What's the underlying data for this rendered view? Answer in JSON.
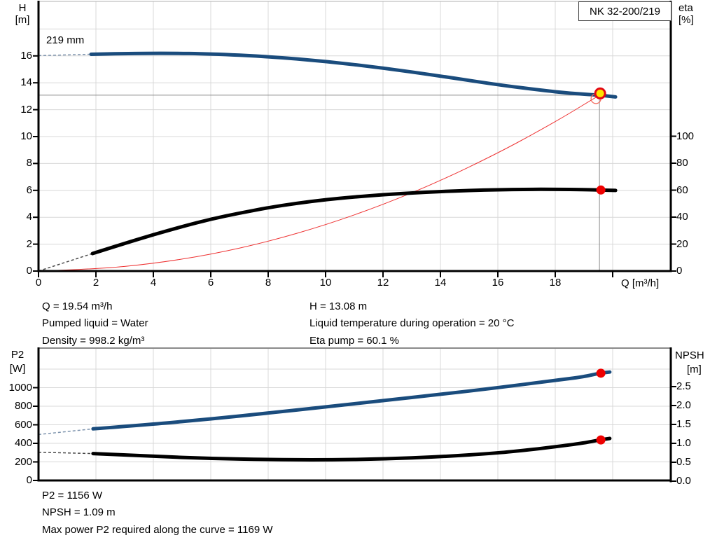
{
  "colors": {
    "curve_blue": "#1a4c7d",
    "curve_black": "#000000",
    "affinity_red": "#ee3333",
    "dot_red": "#ee0000",
    "duty_fill": "#ffe400",
    "duty_ring": "#e30613",
    "grid": "#d8d8d8",
    "crosshair": "#8c8c8c",
    "axis": "#000000"
  },
  "chart_data": [
    {
      "type": "line",
      "title": "NK 32-200/219",
      "impeller_label": "219 mm",
      "xlabel": "Q [m³/h]",
      "ylabel_left_1": "H",
      "ylabel_left_2": "[m]",
      "ylabel_right_1": "eta",
      "ylabel_right_2": "[%]",
      "xlim": [
        0,
        22
      ],
      "ylim_left": [
        0,
        20
      ],
      "ylim_right": [
        0,
        200
      ],
      "grid": true,
      "x_ticks": [
        "0",
        "2",
        "4",
        "6",
        "8",
        "10",
        "12",
        "14",
        "16",
        "18"
      ],
      "x_ticks_unlabeled": [
        "20"
      ],
      "x_grid": [
        2,
        4,
        6,
        8,
        10,
        12,
        14,
        16,
        18,
        20
      ],
      "y_ticks_left": [
        "0",
        "2",
        "4",
        "6",
        "8",
        "10",
        "12",
        "14",
        "16"
      ],
      "y_grid_left": [
        2,
        4,
        6,
        8,
        10,
        12,
        14,
        16,
        18
      ],
      "y_ticks_right": [
        "0",
        "20",
        "40",
        "60",
        "80",
        "100"
      ],
      "series": [
        {
          "id": "affinity-parabola",
          "axis": "left",
          "color": "#ee3333",
          "width": 1,
          "points": [
            [
              0,
              0
            ],
            [
              2,
              0.14
            ],
            [
              4,
              0.55
            ],
            [
              6,
              1.23
            ],
            [
              8,
              2.19
            ],
            [
              10,
              3.42
            ],
            [
              12,
              4.93
            ],
            [
              14,
              6.71
            ],
            [
              16,
              8.77
            ],
            [
              17.5,
              10.5
            ],
            [
              18.5,
              11.73
            ],
            [
              19.2,
              12.64
            ],
            [
              19.54,
              13.08
            ]
          ]
        },
        {
          "id": "eta-curve",
          "axis": "right",
          "color": "#000000",
          "width": 5,
          "dash_lead": [
            [
              0,
              0
            ],
            [
              1.88,
              13
            ]
          ],
          "dash_color": "#4a4a4a",
          "points": [
            [
              1.88,
              13
            ],
            [
              3,
              20.5
            ],
            [
              4,
              27
            ],
            [
              5,
              33
            ],
            [
              6,
              38.5
            ],
            [
              7,
              43
            ],
            [
              8,
              47
            ],
            [
              9,
              50.3
            ],
            [
              10,
              53
            ],
            [
              11,
              55
            ],
            [
              12,
              56.6
            ],
            [
              13,
              57.9
            ],
            [
              14,
              59
            ],
            [
              15,
              59.8
            ],
            [
              16,
              60.3
            ],
            [
              17,
              60.6
            ],
            [
              18,
              60.6
            ],
            [
              19,
              60.4
            ],
            [
              19.54,
              60.1
            ],
            [
              20.1,
              59.8
            ]
          ]
        },
        {
          "id": "head-curve",
          "axis": "left",
          "color": "#1a4c7d",
          "width": 5,
          "dash_lead": [
            [
              0,
              16.02
            ],
            [
              1.83,
              16.12
            ]
          ],
          "dash_color": "#7d93ad",
          "points": [
            [
              1.83,
              16.12
            ],
            [
              3,
              16.18
            ],
            [
              4.5,
              16.2
            ],
            [
              6,
              16.15
            ],
            [
              8,
              15.95
            ],
            [
              10,
              15.6
            ],
            [
              12,
              15.1
            ],
            [
              14,
              14.5
            ],
            [
              16,
              13.85
            ],
            [
              17.5,
              13.45
            ],
            [
              18.5,
              13.22
            ],
            [
              19.54,
              13.08
            ],
            [
              20.1,
              12.95
            ]
          ]
        }
      ],
      "crosshair": {
        "q": 19.54,
        "h": 13.08
      },
      "markers": [
        {
          "type": "open",
          "axis": "left",
          "q": 19.54,
          "v": 13.08
        },
        {
          "type": "duty",
          "axis": "left",
          "q": 19.54,
          "v": 13.08
        },
        {
          "type": "dot",
          "axis": "right",
          "q": 19.54,
          "v": 60.1
        }
      ]
    },
    {
      "type": "line",
      "ylabel_left_1": "P2",
      "ylabel_left_2": "[W]",
      "ylabel_right_1": "NPSH",
      "ylabel_right_2": "[m]",
      "xlim": [
        0,
        22
      ],
      "ylim_left": [
        0,
        1426
      ],
      "ylim_right": [
        0,
        3.5
      ],
      "grid": true,
      "x_grid": [
        2,
        4,
        6,
        8,
        10,
        12,
        14,
        16,
        18,
        20
      ],
      "y_ticks_left": [
        "0",
        "200",
        "400",
        "600",
        "800",
        "1000"
      ],
      "y_grid_left": [
        200,
        400,
        600,
        800,
        1000,
        1200
      ],
      "y_ticks_right": [
        "0.0",
        "0.5",
        "1.0",
        "1.5",
        "2.0",
        "2.5"
      ],
      "series": [
        {
          "id": "p2-curve",
          "axis": "left",
          "color": "#1a4c7d",
          "width": 5,
          "dash_lead": [
            [
              0,
              495
            ],
            [
              1.9,
              556
            ]
          ],
          "dash_color": "#7d93ad",
          "points": [
            [
              1.9,
              556
            ],
            [
              4,
              606
            ],
            [
              6,
              663
            ],
            [
              8,
              726
            ],
            [
              10,
              793
            ],
            [
              12,
              860
            ],
            [
              14,
              928
            ],
            [
              16,
              1000
            ],
            [
              18,
              1078
            ],
            [
              19,
              1118
            ],
            [
              19.54,
              1156
            ],
            [
              19.9,
              1168
            ]
          ]
        },
        {
          "id": "npsh-curve",
          "axis": "right",
          "color": "#000000",
          "width": 5,
          "dash_lead": [
            [
              0,
              0.765
            ],
            [
              1.9,
              0.73
            ]
          ],
          "dash_color": "#4a4a4a",
          "points": [
            [
              1.9,
              0.73
            ],
            [
              4,
              0.655
            ],
            [
              6,
              0.6
            ],
            [
              8,
              0.572
            ],
            [
              10,
              0.563
            ],
            [
              12,
              0.585
            ],
            [
              14,
              0.645
            ],
            [
              16,
              0.745
            ],
            [
              17,
              0.82
            ],
            [
              18,
              0.91
            ],
            [
              19,
              1.01
            ],
            [
              19.54,
              1.09
            ],
            [
              19.9,
              1.13
            ]
          ]
        }
      ],
      "markers": [
        {
          "type": "dot",
          "axis": "left",
          "q": 19.54,
          "v": 1156
        },
        {
          "type": "dot",
          "axis": "right",
          "q": 19.54,
          "v": 1.09
        }
      ]
    }
  ],
  "info_text": {
    "left": [
      "Q = 19.54 m³/h",
      "Pumped liquid = Water",
      "Density = 998.2 kg/m³"
    ],
    "right": [
      "H = 13.08 m",
      "Liquid temperature during operation = 20 °C",
      "Eta pump = 60.1 %"
    ]
  },
  "footer_text": [
    "P2 = 1156 W",
    "NPSH = 1.09 m",
    "Max power P2 required along the curve = 1169 W"
  ]
}
